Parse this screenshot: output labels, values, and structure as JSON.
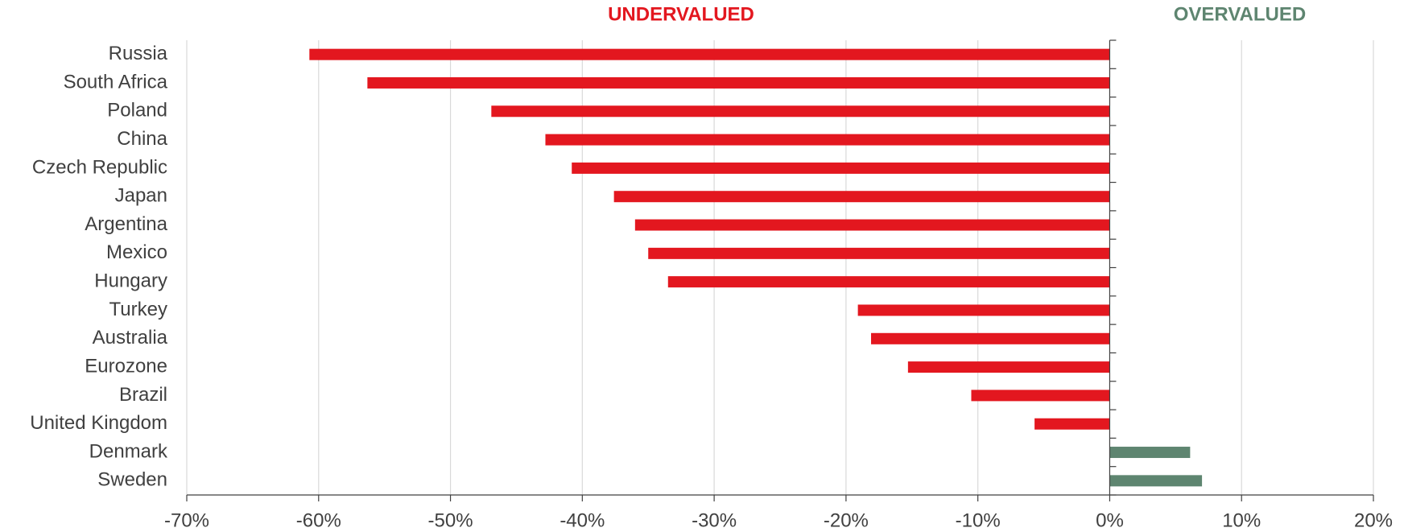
{
  "chart_data": {
    "type": "hbar",
    "annotations": [
      {
        "text": "UNDERVALUED",
        "color": "#e3171f"
      },
      {
        "text": "OVERVALUED",
        "color": "#5e8570"
      }
    ],
    "categories": [
      "Russia",
      "South Africa",
      "Poland",
      "China",
      "Czech Republic",
      "Japan",
      "Argentina",
      "Mexico",
      "Hungary",
      "Turkey",
      "Australia",
      "Eurozone",
      "Brazil",
      "United Kingdom",
      "Denmark",
      "Sweden"
    ],
    "values": [
      -60.7,
      -56.3,
      -46.9,
      -42.8,
      -40.8,
      -37.6,
      -36.0,
      -35.0,
      -33.5,
      -19.1,
      -18.1,
      -15.3,
      -10.5,
      -5.7,
      6.1,
      7.0
    ],
    "colors": [
      "#e3171f",
      "#e3171f",
      "#e3171f",
      "#e3171f",
      "#e3171f",
      "#e3171f",
      "#e3171f",
      "#e3171f",
      "#e3171f",
      "#e3171f",
      "#e3171f",
      "#e3171f",
      "#e3171f",
      "#e3171f",
      "#5e8570",
      "#5e8570"
    ],
    "xlim": [
      -70,
      20
    ],
    "xticks": [
      {
        "value": -70,
        "label": "-70%"
      },
      {
        "value": -60,
        "label": "-60%"
      },
      {
        "value": -50,
        "label": "-50%"
      },
      {
        "value": -40,
        "label": "-40%"
      },
      {
        "value": -30,
        "label": "-30%"
      },
      {
        "value": -20,
        "label": "-20%"
      },
      {
        "value": -10,
        "label": "-10%"
      },
      {
        "value": 0,
        "label": "0%"
      },
      {
        "value": 10,
        "label": "10%"
      },
      {
        "value": 20,
        "label": "20%"
      }
    ],
    "grid": true
  }
}
